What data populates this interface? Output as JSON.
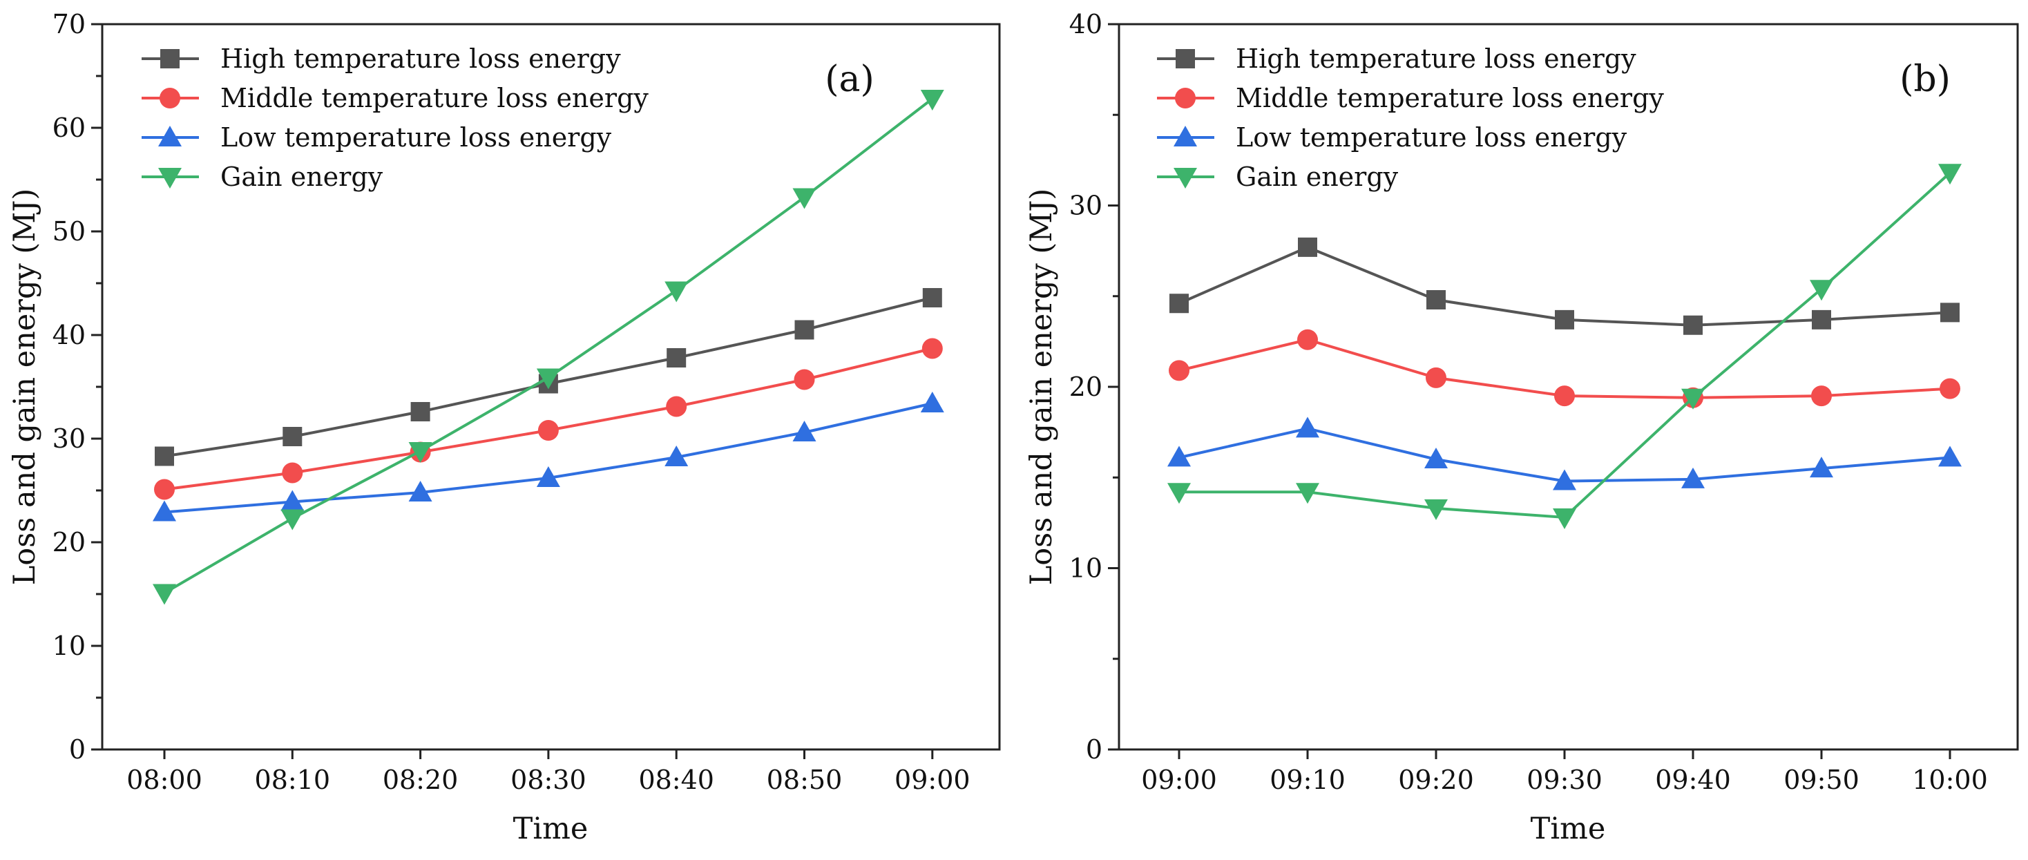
{
  "chart_data": [
    {
      "type": "line",
      "panel_label": "(a)",
      "xlabel": "Time",
      "ylabel": "Loss and gain energy (MJ)",
      "categories": [
        "08:00",
        "08:10",
        "08:20",
        "08:30",
        "08:40",
        "08:50",
        "09:00"
      ],
      "ylim": [
        0,
        70
      ],
      "yticks": [
        0,
        10,
        20,
        30,
        40,
        50,
        60,
        70
      ],
      "yticklabels": [
        "0",
        "10",
        "20",
        "30",
        "40",
        "50",
        "60",
        "70"
      ],
      "legend_position": "top-left",
      "grid": false,
      "series": [
        {
          "name": "High temperature loss energy",
          "color": "#555555",
          "marker": "square",
          "values": [
            28.3,
            30.2,
            32.6,
            35.3,
            37.8,
            40.5,
            43.6
          ]
        },
        {
          "name": "Middle temperature loss energy",
          "color": "#f24d4d",
          "marker": "circle",
          "values": [
            25.1,
            26.7,
            28.7,
            30.8,
            33.1,
            35.7,
            38.7
          ]
        },
        {
          "name": "Low temperature loss energy",
          "color": "#2f6fe0",
          "marker": "triangle-up",
          "values": [
            22.9,
            23.9,
            24.8,
            26.2,
            28.2,
            30.6,
            33.4
          ]
        },
        {
          "name": "Gain energy",
          "color": "#3db36b",
          "marker": "triangle-down",
          "values": [
            15.1,
            22.3,
            28.8,
            35.9,
            44.3,
            53.3,
            62.8
          ]
        }
      ]
    },
    {
      "type": "line",
      "panel_label": "(b)",
      "xlabel": "Time",
      "ylabel": "Loss and gain energy (MJ)",
      "categories": [
        "09:00",
        "09:10",
        "09:20",
        "09:30",
        "09:40",
        "09:50",
        "10:00"
      ],
      "ylim": [
        0,
        40
      ],
      "yticks": [
        0,
        10,
        20,
        30,
        40
      ],
      "yticklabels": [
        "0",
        "10",
        "20",
        "30",
        "40"
      ],
      "legend_position": "top-left",
      "grid": false,
      "series": [
        {
          "name": "High temperature loss energy",
          "color": "#555555",
          "marker": "square",
          "values": [
            24.6,
            27.7,
            24.8,
            23.7,
            23.4,
            23.7,
            24.1
          ]
        },
        {
          "name": "Middle temperature loss energy",
          "color": "#f24d4d",
          "marker": "circle",
          "values": [
            20.9,
            22.6,
            20.5,
            19.5,
            19.4,
            19.5,
            19.9
          ]
        },
        {
          "name": "Low temperature loss energy",
          "color": "#2f6fe0",
          "marker": "triangle-up",
          "values": [
            16.1,
            17.7,
            16.0,
            14.8,
            14.9,
            15.5,
            16.1
          ]
        },
        {
          "name": "Gain energy",
          "color": "#3db36b",
          "marker": "triangle-down",
          "values": [
            14.2,
            14.2,
            13.3,
            12.8,
            19.4,
            25.4,
            31.8
          ]
        }
      ]
    }
  ]
}
